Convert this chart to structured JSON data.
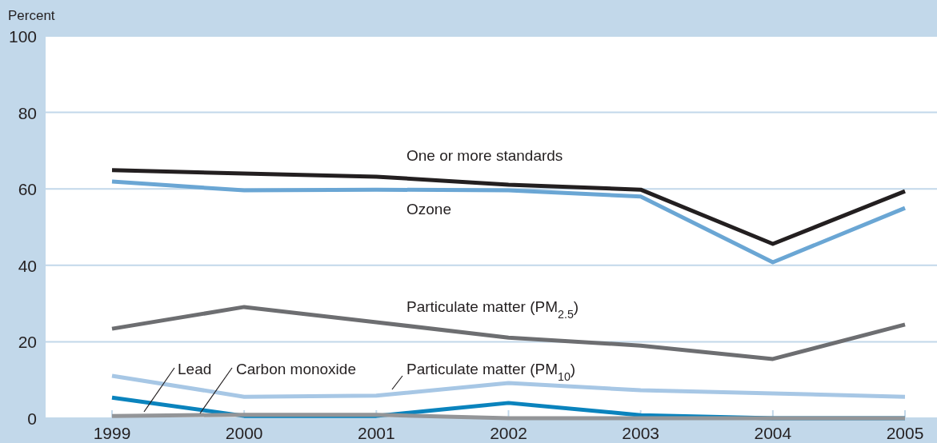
{
  "chart_data": {
    "type": "line",
    "ylabel": "Percent",
    "categories": [
      "1999",
      "2000",
      "2001",
      "2002",
      "2003",
      "2004",
      "2005"
    ],
    "ylim": [
      0,
      100
    ],
    "yticks": [
      0,
      20,
      40,
      60,
      80,
      100
    ],
    "grid": "y",
    "marker": "none",
    "line_style": "solid",
    "series": [
      {
        "name": "One or more standards",
        "color": "#231f20",
        "values": [
          64.9,
          64.0,
          63.2,
          61.1,
          59.8,
          45.6,
          59.4
        ]
      },
      {
        "name": "Ozone",
        "color": "#6aa6d4",
        "values": [
          61.9,
          59.6,
          59.8,
          59.6,
          58.0,
          40.8,
          55.0
        ]
      },
      {
        "name": "Particulate matter (PM$_{2.5}$)",
        "color": "#6d6e71",
        "values": [
          23.4,
          29.1,
          25.1,
          21.1,
          19.0,
          15.5,
          24.5
        ]
      },
      {
        "name": "Particulate matter (PM$_{10}$)",
        "color": "#a7c7e5",
        "values": [
          11.1,
          5.6,
          5.9,
          9.2,
          7.3,
          6.5,
          5.6
        ]
      },
      {
        "name": "Lead",
        "color": "#0a83bd",
        "values": [
          5.4,
          0.6,
          0.6,
          4.0,
          0.8,
          0,
          0
        ]
      },
      {
        "name": "Carbon monoxide",
        "color": "#939598",
        "values": [
          0.6,
          0.9,
          0.9,
          0,
          0,
          0,
          0
        ]
      }
    ]
  }
}
